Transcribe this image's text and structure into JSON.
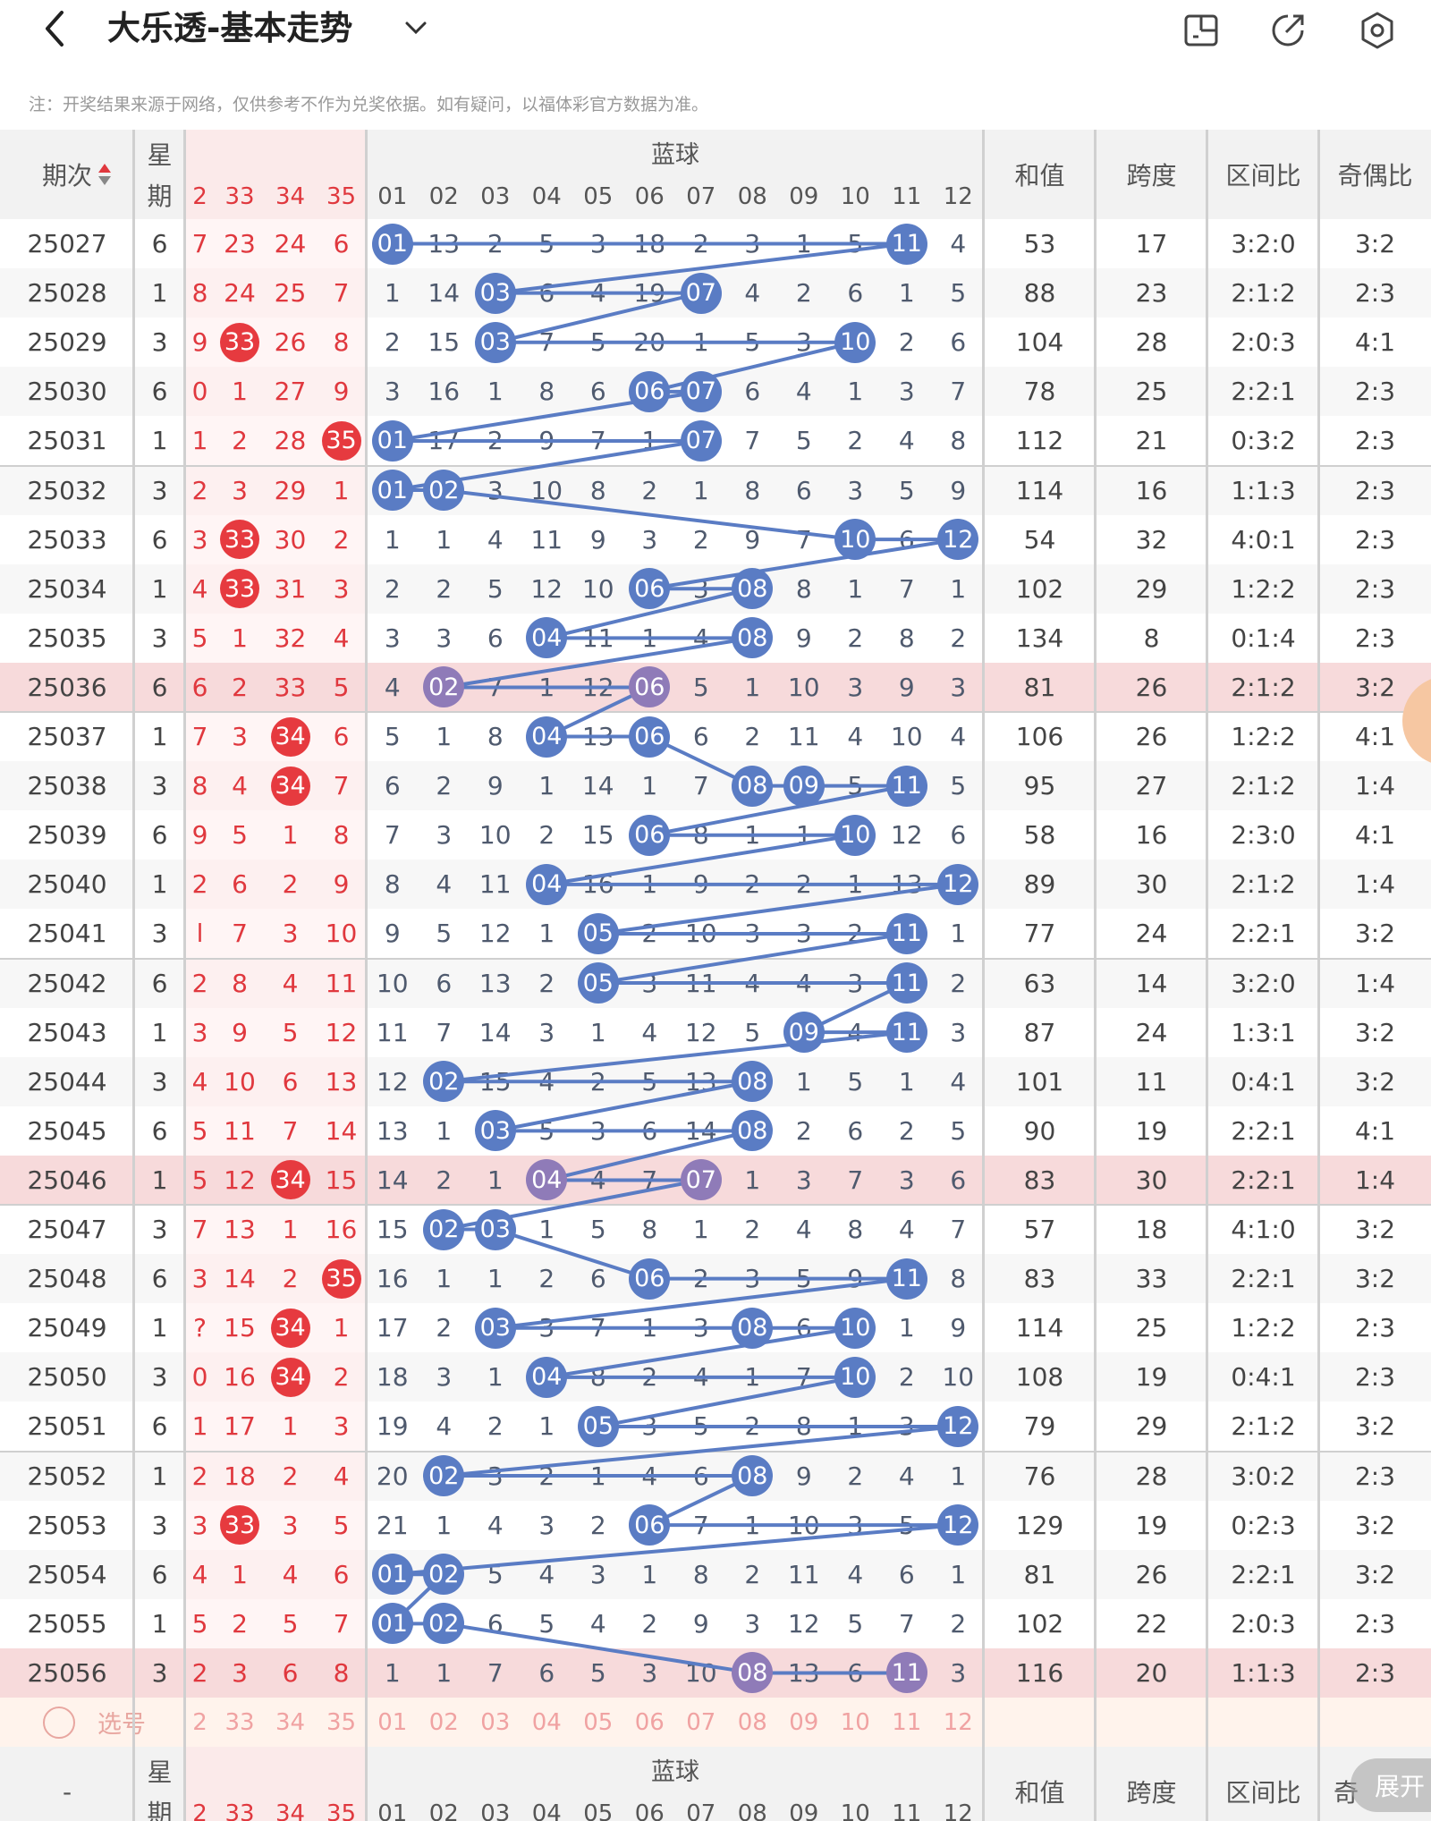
{
  "header": {
    "title": "大乐透-基本走势"
  },
  "notice": "注：开奖结果来源于网络，仅供参考不作为兑奖依据。如有疑问，以福体彩官方数据为准。",
  "table": {
    "period_label": "期次",
    "week_label_1": "星",
    "week_label_2": "期",
    "blue_group_label": "蓝球",
    "sum_label": "和值",
    "span_label": "跨度",
    "zone_label": "区间比",
    "oddeven_label": "奇偶比",
    "oddeven_label_bottom": "奇",
    "red_cols": [
      "2",
      "33",
      "34",
      "35"
    ],
    "blue_cols": [
      "01",
      "02",
      "03",
      "04",
      "05",
      "06",
      "07",
      "08",
      "09",
      "10",
      "11",
      "12"
    ],
    "select_label": "选号",
    "bottom_period": "-",
    "rows": [
      {
        "period": "25027",
        "week": "6",
        "red": [
          "7",
          "23",
          "24",
          "6"
        ],
        "blue": [
          "01",
          "13",
          "2",
          "5",
          "3",
          "18",
          "2",
          "3",
          "1",
          "5",
          "11",
          "4"
        ],
        "sum": "53",
        "span": "17",
        "zone": "3:2:0",
        "oe": "3:2"
      },
      {
        "period": "25028",
        "week": "1",
        "red": [
          "8",
          "24",
          "25",
          "7"
        ],
        "blue": [
          "1",
          "14",
          "03",
          "6",
          "4",
          "19",
          "07",
          "4",
          "2",
          "6",
          "1",
          "5"
        ],
        "sum": "88",
        "span": "23",
        "zone": "2:1:2",
        "oe": "2:3"
      },
      {
        "period": "25029",
        "week": "3",
        "red": [
          "9",
          "33",
          "26",
          "8"
        ],
        "blue": [
          "2",
          "15",
          "03",
          "7",
          "5",
          "20",
          "1",
          "5",
          "3",
          "10",
          "2",
          "6"
        ],
        "sum": "104",
        "span": "28",
        "zone": "2:0:3",
        "oe": "4:1"
      },
      {
        "period": "25030",
        "week": "6",
        "red": [
          "0",
          "1",
          "27",
          "9"
        ],
        "blue": [
          "3",
          "16",
          "1",
          "8",
          "6",
          "06",
          "07",
          "6",
          "4",
          "1",
          "3",
          "7"
        ],
        "sum": "78",
        "span": "25",
        "zone": "2:2:1",
        "oe": "2:3"
      },
      {
        "period": "25031",
        "week": "1",
        "red": [
          "1",
          "2",
          "28",
          "35"
        ],
        "blue": [
          "01",
          "17",
          "2",
          "9",
          "7",
          "1",
          "07",
          "7",
          "5",
          "2",
          "4",
          "8"
        ],
        "sum": "112",
        "span": "21",
        "zone": "0:3:2",
        "oe": "2:3"
      },
      {
        "period": "25032",
        "week": "3",
        "red": [
          "2",
          "3",
          "29",
          "1"
        ],
        "blue": [
          "01",
          "02",
          "3",
          "10",
          "8",
          "2",
          "1",
          "8",
          "6",
          "3",
          "5",
          "9"
        ],
        "sum": "114",
        "span": "16",
        "zone": "1:1:3",
        "oe": "2:3"
      },
      {
        "period": "25033",
        "week": "6",
        "red": [
          "3",
          "33",
          "30",
          "2"
        ],
        "blue": [
          "1",
          "1",
          "4",
          "11",
          "9",
          "3",
          "2",
          "9",
          "7",
          "10",
          "6",
          "12"
        ],
        "sum": "54",
        "span": "32",
        "zone": "4:0:1",
        "oe": "2:3"
      },
      {
        "period": "25034",
        "week": "1",
        "red": [
          "4",
          "33",
          "31",
          "3"
        ],
        "blue": [
          "2",
          "2",
          "5",
          "12",
          "10",
          "06",
          "3",
          "08",
          "8",
          "1",
          "7",
          "1"
        ],
        "sum": "102",
        "span": "29",
        "zone": "1:2:2",
        "oe": "2:3"
      },
      {
        "period": "25035",
        "week": "3",
        "red": [
          "5",
          "1",
          "32",
          "4"
        ],
        "blue": [
          "3",
          "3",
          "6",
          "04",
          "11",
          "1",
          "4",
          "08",
          "9",
          "2",
          "8",
          "2"
        ],
        "sum": "134",
        "span": "8",
        "zone": "0:1:4",
        "oe": "2:3"
      },
      {
        "period": "25036",
        "week": "6",
        "red": [
          "6",
          "2",
          "33",
          "5"
        ],
        "blue": [
          "4",
          "02",
          "7",
          "1",
          "12",
          "06",
          "5",
          "1",
          "10",
          "3",
          "9",
          "3"
        ],
        "sum": "81",
        "span": "26",
        "zone": "2:1:2",
        "oe": "3:2"
      },
      {
        "period": "25037",
        "week": "1",
        "red": [
          "7",
          "3",
          "34",
          "6"
        ],
        "blue": [
          "5",
          "1",
          "8",
          "04",
          "13",
          "06",
          "6",
          "2",
          "11",
          "4",
          "10",
          "4"
        ],
        "sum": "106",
        "span": "26",
        "zone": "1:2:2",
        "oe": "4:1"
      },
      {
        "period": "25038",
        "week": "3",
        "red": [
          "8",
          "4",
          "34",
          "7"
        ],
        "blue": [
          "6",
          "2",
          "9",
          "1",
          "14",
          "1",
          "7",
          "08",
          "09",
          "5",
          "11",
          "5"
        ],
        "sum": "95",
        "span": "27",
        "zone": "2:1:2",
        "oe": "1:4"
      },
      {
        "period": "25039",
        "week": "6",
        "red": [
          "9",
          "5",
          "1",
          "8"
        ],
        "blue": [
          "7",
          "3",
          "10",
          "2",
          "15",
          "06",
          "8",
          "1",
          "1",
          "10",
          "12",
          "6"
        ],
        "sum": "58",
        "span": "16",
        "zone": "2:3:0",
        "oe": "4:1"
      },
      {
        "period": "25040",
        "week": "1",
        "red": [
          "2",
          "6",
          "2",
          "9"
        ],
        "blue": [
          "8",
          "4",
          "11",
          "04",
          "16",
          "1",
          "9",
          "2",
          "2",
          "1",
          "13",
          "12"
        ],
        "sum": "89",
        "span": "30",
        "zone": "2:1:2",
        "oe": "1:4"
      },
      {
        "period": "25041",
        "week": "3",
        "red": [
          "l",
          "7",
          "3",
          "10"
        ],
        "blue": [
          "9",
          "5",
          "12",
          "1",
          "05",
          "2",
          "10",
          "3",
          "3",
          "2",
          "11",
          "1"
        ],
        "sum": "77",
        "span": "24",
        "zone": "2:2:1",
        "oe": "3:2"
      },
      {
        "period": "25042",
        "week": "6",
        "red": [
          "2",
          "8",
          "4",
          "11"
        ],
        "blue": [
          "10",
          "6",
          "13",
          "2",
          "05",
          "3",
          "11",
          "4",
          "4",
          "3",
          "11",
          "2"
        ],
        "sum": "63",
        "span": "14",
        "zone": "3:2:0",
        "oe": "1:4"
      },
      {
        "period": "25043",
        "week": "1",
        "red": [
          "3",
          "9",
          "5",
          "12"
        ],
        "blue": [
          "11",
          "7",
          "14",
          "3",
          "1",
          "4",
          "12",
          "5",
          "09",
          "4",
          "11",
          "3"
        ],
        "sum": "87",
        "span": "24",
        "zone": "1:3:1",
        "oe": "3:2"
      },
      {
        "period": "25044",
        "week": "3",
        "red": [
          "4",
          "10",
          "6",
          "13"
        ],
        "blue": [
          "12",
          "02",
          "15",
          "4",
          "2",
          "5",
          "13",
          "08",
          "1",
          "5",
          "1",
          "4"
        ],
        "sum": "101",
        "span": "11",
        "zone": "0:4:1",
        "oe": "3:2"
      },
      {
        "period": "25045",
        "week": "6",
        "red": [
          "5",
          "11",
          "7",
          "14"
        ],
        "blue": [
          "13",
          "1",
          "03",
          "5",
          "3",
          "6",
          "14",
          "08",
          "2",
          "6",
          "2",
          "5"
        ],
        "sum": "90",
        "span": "19",
        "zone": "2:2:1",
        "oe": "4:1"
      },
      {
        "period": "25046",
        "week": "1",
        "red": [
          "5",
          "12",
          "34",
          "15"
        ],
        "blue": [
          "14",
          "2",
          "1",
          "04",
          "4",
          "7",
          "07",
          "1",
          "3",
          "7",
          "3",
          "6"
        ],
        "sum": "83",
        "span": "30",
        "zone": "2:2:1",
        "oe": "1:4"
      },
      {
        "period": "25047",
        "week": "3",
        "red": [
          "7",
          "13",
          "1",
          "16"
        ],
        "blue": [
          "15",
          "02",
          "03",
          "1",
          "5",
          "8",
          "1",
          "2",
          "4",
          "8",
          "4",
          "7"
        ],
        "sum": "57",
        "span": "18",
        "zone": "4:1:0",
        "oe": "3:2"
      },
      {
        "period": "25048",
        "week": "6",
        "red": [
          "3",
          "14",
          "2",
          "35"
        ],
        "blue": [
          "16",
          "1",
          "1",
          "2",
          "6",
          "06",
          "2",
          "3",
          "5",
          "9",
          "11",
          "8"
        ],
        "sum": "83",
        "span": "33",
        "zone": "2:2:1",
        "oe": "3:2"
      },
      {
        "period": "25049",
        "week": "1",
        "red": [
          "?",
          "15",
          "34",
          "1"
        ],
        "blue": [
          "17",
          "2",
          "03",
          "3",
          "7",
          "1",
          "3",
          "08",
          "6",
          "10",
          "1",
          "9"
        ],
        "sum": "114",
        "span": "25",
        "zone": "1:2:2",
        "oe": "2:3"
      },
      {
        "period": "25050",
        "week": "3",
        "red": [
          "0",
          "16",
          "34",
          "2"
        ],
        "blue": [
          "18",
          "3",
          "1",
          "04",
          "8",
          "2",
          "4",
          "1",
          "7",
          "10",
          "2",
          "10"
        ],
        "sum": "108",
        "span": "19",
        "zone": "0:4:1",
        "oe": "2:3"
      },
      {
        "period": "25051",
        "week": "6",
        "red": [
          "1",
          "17",
          "1",
          "3"
        ],
        "blue": [
          "19",
          "4",
          "2",
          "1",
          "05",
          "3",
          "5",
          "2",
          "8",
          "1",
          "3",
          "12"
        ],
        "sum": "79",
        "span": "29",
        "zone": "2:1:2",
        "oe": "3:2"
      },
      {
        "period": "25052",
        "week": "1",
        "red": [
          "2",
          "18",
          "2",
          "4"
        ],
        "blue": [
          "20",
          "02",
          "3",
          "2",
          "1",
          "4",
          "6",
          "08",
          "9",
          "2",
          "4",
          "1"
        ],
        "sum": "76",
        "span": "28",
        "zone": "3:0:2",
        "oe": "2:3"
      },
      {
        "period": "25053",
        "week": "3",
        "red": [
          "3",
          "33",
          "3",
          "5"
        ],
        "blue": [
          "21",
          "1",
          "4",
          "3",
          "2",
          "06",
          "7",
          "1",
          "10",
          "3",
          "5",
          "12"
        ],
        "sum": "129",
        "span": "19",
        "zone": "0:2:3",
        "oe": "3:2"
      },
      {
        "period": "25054",
        "week": "6",
        "red": [
          "4",
          "1",
          "4",
          "6"
        ],
        "blue": [
          "01",
          "02",
          "5",
          "4",
          "3",
          "1",
          "8",
          "2",
          "11",
          "4",
          "6",
          "1"
        ],
        "sum": "81",
        "span": "26",
        "zone": "2:2:1",
        "oe": "3:2"
      },
      {
        "period": "25055",
        "week": "1",
        "red": [
          "5",
          "2",
          "5",
          "7"
        ],
        "blue": [
          "01",
          "02",
          "6",
          "5",
          "4",
          "2",
          "9",
          "3",
          "12",
          "5",
          "7",
          "2"
        ],
        "sum": "102",
        "span": "22",
        "zone": "2:0:3",
        "oe": "2:3"
      },
      {
        "period": "25056",
        "week": "3",
        "red": [
          "2",
          "3",
          "6",
          "8"
        ],
        "blue": [
          "1",
          "1",
          "7",
          "6",
          "5",
          "3",
          "10",
          "08",
          "13",
          "6",
          "11",
          "3"
        ],
        "sum": "116",
        "span": "20",
        "zone": "1:1:3",
        "oe": "2:3"
      }
    ]
  },
  "expand_label": "展开"
}
